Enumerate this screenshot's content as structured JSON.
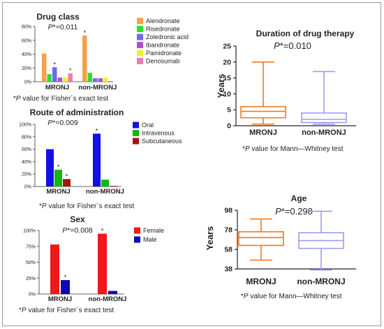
{
  "figure": {
    "footnote_fisher": "*P value for Fisher´s exact test",
    "footnote_mann": "*P value for Mann—Whitney test"
  },
  "colors": {
    "alendronate": "#f5a04a",
    "risedronate": "#2de02d",
    "zoledronic": "#6b6bf0",
    "ibandronate": "#b050c8",
    "pamidronate": "#f0f02a",
    "denosumab": "#f07ab4",
    "oral": "#1010e8",
    "intravenous": "#10b810",
    "subcutaneous": "#a81414",
    "female": "#f01818",
    "male": "#0a0ab4",
    "mronj_box": "#f07a1e",
    "non_mronj_box": "#9b9bf2"
  },
  "chart_data": [
    {
      "id": "drug_class",
      "type": "bar",
      "title": "Drug class",
      "pvalue_label": "P*=0.011",
      "categories": [
        "MRONJ",
        "non-MRONJ"
      ],
      "series": [
        {
          "name": "Alendronate",
          "values": [
            41,
            67
          ]
        },
        {
          "name": "Risedronate",
          "values": [
            11,
            13
          ]
        },
        {
          "name": "Zoledronic acid",
          "values": [
            21,
            5
          ]
        },
        {
          "name": "Ibandronate",
          "values": [
            6,
            5
          ]
        },
        {
          "name": "Pamidronate",
          "values": [
            6,
            6
          ]
        },
        {
          "name": "Denosumab",
          "values": [
            12,
            1
          ]
        }
      ],
      "asterisks": [
        [
          0,
          2
        ],
        [
          0,
          5
        ],
        [
          1,
          0
        ]
      ],
      "ylim": [
        0,
        80
      ],
      "yticks": [
        "0%",
        "20%",
        "40%",
        "60%",
        "80%"
      ],
      "legend": "right",
      "footnote": "*P value for Fisher´s exact test"
    },
    {
      "id": "route",
      "type": "bar",
      "title": "Route of administration",
      "pvalue_label": "P*=0.009",
      "categories": [
        "MRONJ",
        "non-MRONJ"
      ],
      "series": [
        {
          "name": "Oral",
          "values": [
            60,
            85
          ]
        },
        {
          "name": "Intravenous",
          "values": [
            27,
            11
          ]
        },
        {
          "name": "Subcutaneous",
          "values": [
            12,
            1
          ]
        }
      ],
      "asterisks": [
        [
          0,
          1
        ],
        [
          0,
          2
        ],
        [
          1,
          0
        ]
      ],
      "ylim": [
        0,
        100
      ],
      "yticks": [
        "0%",
        "20%",
        "40%",
        "60%",
        "80%",
        "100%"
      ],
      "legend": "right",
      "footnote": "*P value for Fisher´s exact test"
    },
    {
      "id": "sex",
      "type": "bar",
      "title": "Sex",
      "pvalue_label": "P*=0.008",
      "categories": [
        "MRONJ",
        "non-MRONJ"
      ],
      "series": [
        {
          "name": "Female",
          "values": [
            78,
            95
          ]
        },
        {
          "name": "Male",
          "values": [
            22,
            5
          ]
        }
      ],
      "asterisks": [
        [
          0,
          1
        ],
        [
          1,
          0
        ]
      ],
      "ylim": [
        0,
        100
      ],
      "yticks": [
        "0%",
        "25%",
        "50%",
        "75%",
        "100%"
      ],
      "legend": "right",
      "footnote": "*P value for Fisher´s exact test"
    },
    {
      "id": "duration",
      "type": "box",
      "title": "Duration of drug therapy",
      "pvalue_label": "P*=0.010",
      "ylabel": "Years",
      "categories": [
        "MRONJ",
        "non-MRONJ"
      ],
      "boxes": [
        {
          "min": 0.5,
          "q1": 2.5,
          "median": 4.5,
          "q3": 6,
          "max": 20
        },
        {
          "min": 0.5,
          "q1": 1,
          "median": 2,
          "q3": 4,
          "max": 17
        }
      ],
      "ylim": [
        0,
        25
      ],
      "yticks": [
        0,
        5,
        10,
        15,
        20,
        25
      ],
      "footnote": "*P value for Mann—Whitney test"
    },
    {
      "id": "age",
      "type": "box",
      "title": "Age",
      "pvalue_label": "P*=0.298",
      "ylabel": "Years",
      "categories": [
        "MRONJ",
        "non-MRONJ"
      ],
      "boxes": [
        {
          "min": 47,
          "q1": 62,
          "median": 70,
          "q3": 76,
          "max": 89
        },
        {
          "min": 37,
          "q1": 59,
          "median": 67,
          "q3": 75,
          "max": 97
        }
      ],
      "ylim": [
        38,
        98
      ],
      "yticks": [
        38,
        58,
        78,
        98
      ],
      "footnote": "*P value for Mann—Whitney test"
    }
  ]
}
